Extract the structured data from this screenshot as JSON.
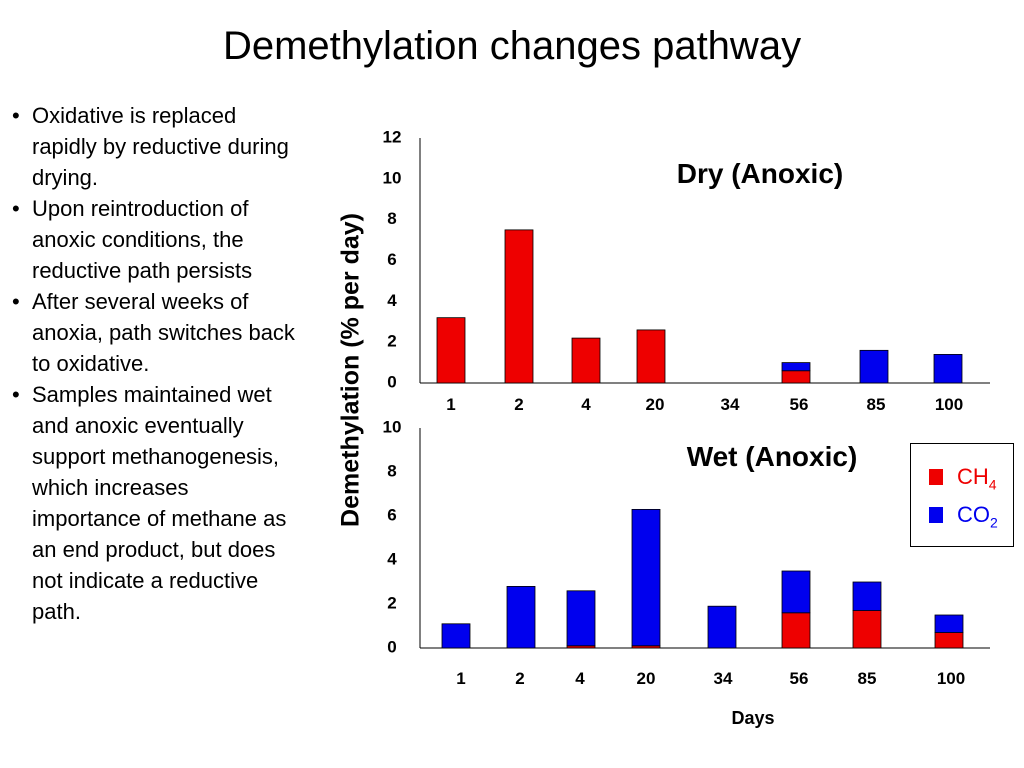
{
  "slide": {
    "title": "Demethylation changes pathway",
    "bullets": [
      "Oxidative is replaced rapidly by reductive during drying.",
      "Upon reintroduction of anoxic conditions, the reductive path persists",
      "After several weeks of anoxia, path switches back to oxidative.",
      "Samples maintained wet and anoxic eventually support methanogenesis, which increases importance of methane as an end product, but does not indicate a reductive path."
    ],
    "bullet_char": "•"
  },
  "legend": [
    {
      "text": "CH",
      "sub": "4",
      "color": "#ee0000",
      "text_color": "#ee0000"
    },
    {
      "text": "CO",
      "sub": "2",
      "color": "#0000ee",
      "text_color": "#0000ee"
    }
  ],
  "chart_data": [
    {
      "type": "bar",
      "stacked": true,
      "title": "Dry (Anoxic)",
      "ylabel": "Demethylation (% per day)",
      "categories": [
        "1",
        "2",
        "4",
        "20",
        "34",
        "56",
        "85",
        "100"
      ],
      "yticks": [
        "0",
        "2",
        "4",
        "6",
        "8",
        "10",
        "12"
      ],
      "ylim": [
        0,
        12
      ],
      "series": [
        {
          "name": "CH4",
          "color": "#ee0000",
          "values": [
            3.2,
            7.5,
            2.2,
            2.6,
            0,
            0.6,
            0,
            0
          ]
        },
        {
          "name": "CO2",
          "color": "#0000ee",
          "values": [
            0,
            0,
            0,
            0,
            0,
            0.4,
            1.6,
            1.4
          ]
        }
      ]
    },
    {
      "type": "bar",
      "stacked": true,
      "title": "Wet (Anoxic)",
      "xlabel": "Days",
      "categories": [
        "1",
        "2",
        "4",
        "20",
        "34",
        "56",
        "85",
        "100"
      ],
      "yticks": [
        "0",
        "2",
        "4",
        "6",
        "8",
        "10"
      ],
      "ylim": [
        0,
        10
      ],
      "series": [
        {
          "name": "CH4",
          "color": "#ee0000",
          "values": [
            0,
            0,
            0.1,
            0.1,
            0,
            1.6,
            1.7,
            0.7
          ]
        },
        {
          "name": "CO2",
          "color": "#0000ee",
          "values": [
            1.1,
            2.8,
            2.5,
            6.2,
            1.9,
            1.9,
            1.3,
            0.8
          ]
        }
      ]
    }
  ]
}
